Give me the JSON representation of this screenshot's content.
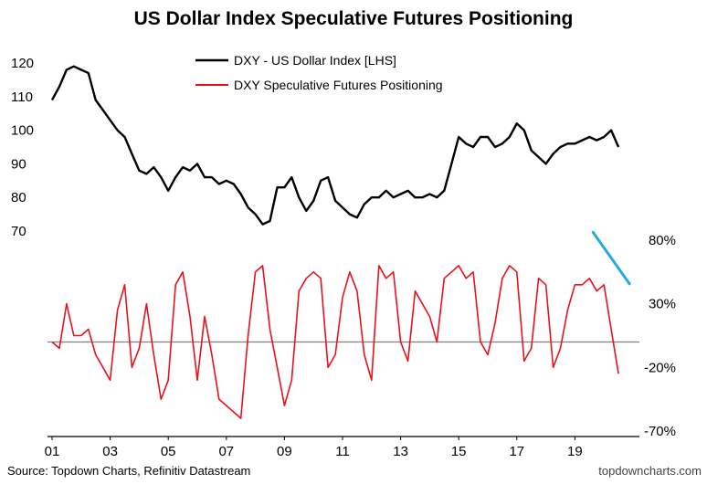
{
  "chart_data": {
    "type": "line",
    "title": "US Dollar Index Speculative Futures Positioning",
    "x": [
      2001.0,
      2001.25,
      2001.5,
      2001.75,
      2002.0,
      2002.25,
      2002.5,
      2002.75,
      2003.0,
      2003.25,
      2003.5,
      2003.75,
      2004.0,
      2004.25,
      2004.5,
      2004.75,
      2005.0,
      2005.25,
      2005.5,
      2005.75,
      2006.0,
      2006.25,
      2006.5,
      2006.75,
      2007.0,
      2007.25,
      2007.5,
      2007.75,
      2008.0,
      2008.25,
      2008.5,
      2008.75,
      2009.0,
      2009.25,
      2009.5,
      2009.75,
      2010.0,
      2010.25,
      2010.5,
      2010.75,
      2011.0,
      2011.25,
      2011.5,
      2011.75,
      2012.0,
      2012.25,
      2012.5,
      2012.75,
      2013.0,
      2013.25,
      2013.5,
      2013.75,
      2014.0,
      2014.25,
      2014.5,
      2014.75,
      2015.0,
      2015.25,
      2015.5,
      2015.75,
      2016.0,
      2016.25,
      2016.5,
      2016.75,
      2017.0,
      2017.25,
      2017.5,
      2017.75,
      2018.0,
      2018.25,
      2018.5,
      2018.75,
      2019.0,
      2019.25,
      2019.5,
      2019.75,
      2020.0,
      2020.25,
      2020.5
    ],
    "series": [
      {
        "name": "DXY - US Dollar Index [LHS]",
        "color": "#000000",
        "axis": "left",
        "values": [
          109,
          113,
          118,
          119,
          118,
          117,
          109,
          106,
          103,
          100,
          98,
          93,
          88,
          87,
          89,
          86,
          82,
          86,
          89,
          88,
          90,
          86,
          86,
          84,
          85,
          84,
          81,
          77,
          75,
          72,
          73,
          83,
          83,
          86,
          80,
          76,
          79,
          85,
          86,
          79,
          77,
          75,
          74,
          78,
          80,
          80,
          82,
          80,
          81,
          82,
          80,
          80,
          81,
          80,
          82,
          90,
          98,
          96,
          95,
          98,
          98,
          95,
          96,
          98,
          102,
          100,
          94,
          92,
          90,
          93,
          95,
          96,
          96,
          97,
          98,
          97,
          98,
          100,
          95
        ]
      },
      {
        "name": "DXY Speculative Futures Positioning",
        "color": "#e8121b",
        "axis": "right",
        "values": [
          0,
          -5,
          30,
          5,
          5,
          10,
          -10,
          -20,
          -30,
          25,
          45,
          -20,
          -5,
          30,
          -10,
          -45,
          -30,
          45,
          55,
          20,
          -30,
          20,
          -10,
          -45,
          -50,
          -55,
          -60,
          5,
          55,
          60,
          10,
          -20,
          -50,
          -30,
          40,
          50,
          55,
          50,
          -20,
          -10,
          35,
          55,
          40,
          -10,
          -30,
          60,
          50,
          55,
          0,
          -15,
          40,
          30,
          20,
          0,
          50,
          55,
          60,
          50,
          55,
          0,
          -10,
          15,
          50,
          60,
          55,
          -15,
          -5,
          50,
          45,
          -20,
          -5,
          25,
          45,
          45,
          50,
          40,
          45,
          10,
          -25
        ]
      }
    ],
    "left_axis": {
      "ticks": [
        70,
        80,
        90,
        100,
        110,
        120
      ],
      "ylim": [
        70,
        125
      ]
    },
    "right_axis": {
      "ticks": [
        "80%",
        "30%",
        "-20%",
        "-70%"
      ],
      "ylim": [
        -70,
        95
      ]
    },
    "x_ticks": [
      "01",
      "03",
      "05",
      "07",
      "09",
      "11",
      "13",
      "15",
      "17",
      "19"
    ],
    "xlim": [
      2001,
      2021
    ],
    "zero_line": 0,
    "trend_line": {
      "color": "#29a8e0",
      "from": [
        2019.6,
        87
      ],
      "to": [
        2020.9,
        45
      ]
    },
    "legend": "top-center",
    "grid": false
  },
  "footer": {
    "source": "Source: Topdown Charts, Refinitiv Datastream",
    "brand": "topdowncharts.com"
  }
}
